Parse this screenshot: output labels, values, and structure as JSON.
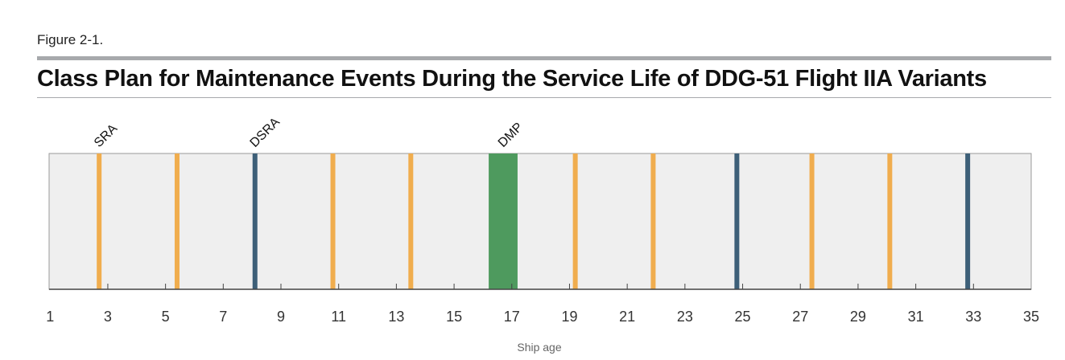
{
  "figure_label": "Figure 2-1.",
  "title": "Class Plan for Maintenance Events During the Service Life of DDG-51 Flight IIA Variants",
  "chart_data": {
    "type": "timeline",
    "title": "Class Plan for Maintenance Events During the Service Life of DDG-51 Flight IIA Variants",
    "xlabel": "Ship age",
    "xlim": [
      0,
      35
    ],
    "ticks": [
      1,
      3,
      5,
      7,
      9,
      11,
      13,
      15,
      17,
      19,
      21,
      23,
      25,
      27,
      29,
      31,
      33,
      35
    ],
    "colors": {
      "SRA": "#f0ad4e",
      "DSRA": "#3d5f78",
      "DMP": "#4e9a5e",
      "background": "#efefef"
    },
    "events": [
      {
        "type": "SRA",
        "age": 2.7
      },
      {
        "type": "SRA",
        "age": 5.4
      },
      {
        "type": "DSRA",
        "age": 8.1
      },
      {
        "type": "SRA",
        "age": 10.8
      },
      {
        "type": "SRA",
        "age": 13.5
      },
      {
        "type": "DMP",
        "start": 16.2,
        "end": 17.2
      },
      {
        "type": "SRA",
        "age": 19.2
      },
      {
        "type": "SRA",
        "age": 21.9
      },
      {
        "type": "DSRA",
        "age": 24.8
      },
      {
        "type": "SRA",
        "age": 27.4
      },
      {
        "type": "SRA",
        "age": 30.1
      },
      {
        "type": "DSRA",
        "age": 32.8
      }
    ],
    "labels": [
      {
        "text": "SRA",
        "age": 2.7
      },
      {
        "text": "DSRA",
        "age": 8.1
      },
      {
        "text": "DMP",
        "age": 16.7
      }
    ]
  }
}
